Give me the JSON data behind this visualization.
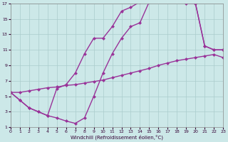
{
  "xlabel": "Windchill (Refroidissement éolien,°C)",
  "xlim": [
    0,
    23
  ],
  "ylim": [
    1,
    17
  ],
  "xticks": [
    0,
    1,
    2,
    3,
    4,
    5,
    6,
    7,
    8,
    9,
    10,
    11,
    12,
    13,
    14,
    15,
    16,
    17,
    18,
    19,
    20,
    21,
    22,
    23
  ],
  "yticks": [
    1,
    3,
    5,
    7,
    9,
    11,
    13,
    15,
    17
  ],
  "bg_color": "#cce8e8",
  "grid_color": "#aacccc",
  "line_color": "#993399",
  "line_width": 1.0,
  "marker_size": 2.5,
  "curve1_x": [
    0,
    1,
    2,
    3,
    4,
    5,
    6,
    7,
    8,
    9,
    10,
    11,
    12,
    13,
    14,
    15,
    16,
    17,
    18,
    19,
    20,
    21,
    22,
    23
  ],
  "curve1_y": [
    5.5,
    4.5,
    3.5,
    3.0,
    2.5,
    2.2,
    1.8,
    1.5,
    2.2,
    5.0,
    8.0,
    10.5,
    12.5,
    14.0,
    14.5,
    17.2,
    17.5,
    17.5,
    17.5,
    17.3,
    17.0,
    11.5,
    11.0,
    11.0
  ],
  "curve2_x": [
    0,
    1,
    2,
    3,
    4,
    5,
    6,
    7,
    8,
    9,
    10,
    11,
    12,
    13,
    14,
    15,
    16,
    17,
    18,
    19,
    20,
    21,
    22,
    23
  ],
  "curve2_y": [
    5.5,
    5.5,
    5.7,
    5.9,
    6.1,
    6.2,
    6.4,
    6.5,
    6.7,
    6.9,
    7.1,
    7.4,
    7.7,
    8.0,
    8.3,
    8.6,
    9.0,
    9.3,
    9.6,
    9.8,
    10.0,
    10.2,
    10.4,
    10.0
  ],
  "curve3_x": [
    0,
    1,
    2,
    3,
    4,
    5,
    6,
    7,
    8,
    9,
    10,
    11,
    12,
    13,
    14,
    15,
    16,
    17,
    18,
    19,
    20,
    21,
    22,
    23
  ],
  "curve3_y": [
    5.5,
    4.5,
    3.5,
    3.0,
    2.5,
    6.0,
    6.5,
    8.0,
    10.5,
    12.5,
    12.5,
    14.0,
    16.0,
    16.5,
    17.2,
    17.5,
    17.5,
    17.5,
    17.5,
    17.0,
    17.0,
    11.5,
    11.0,
    11.0
  ]
}
